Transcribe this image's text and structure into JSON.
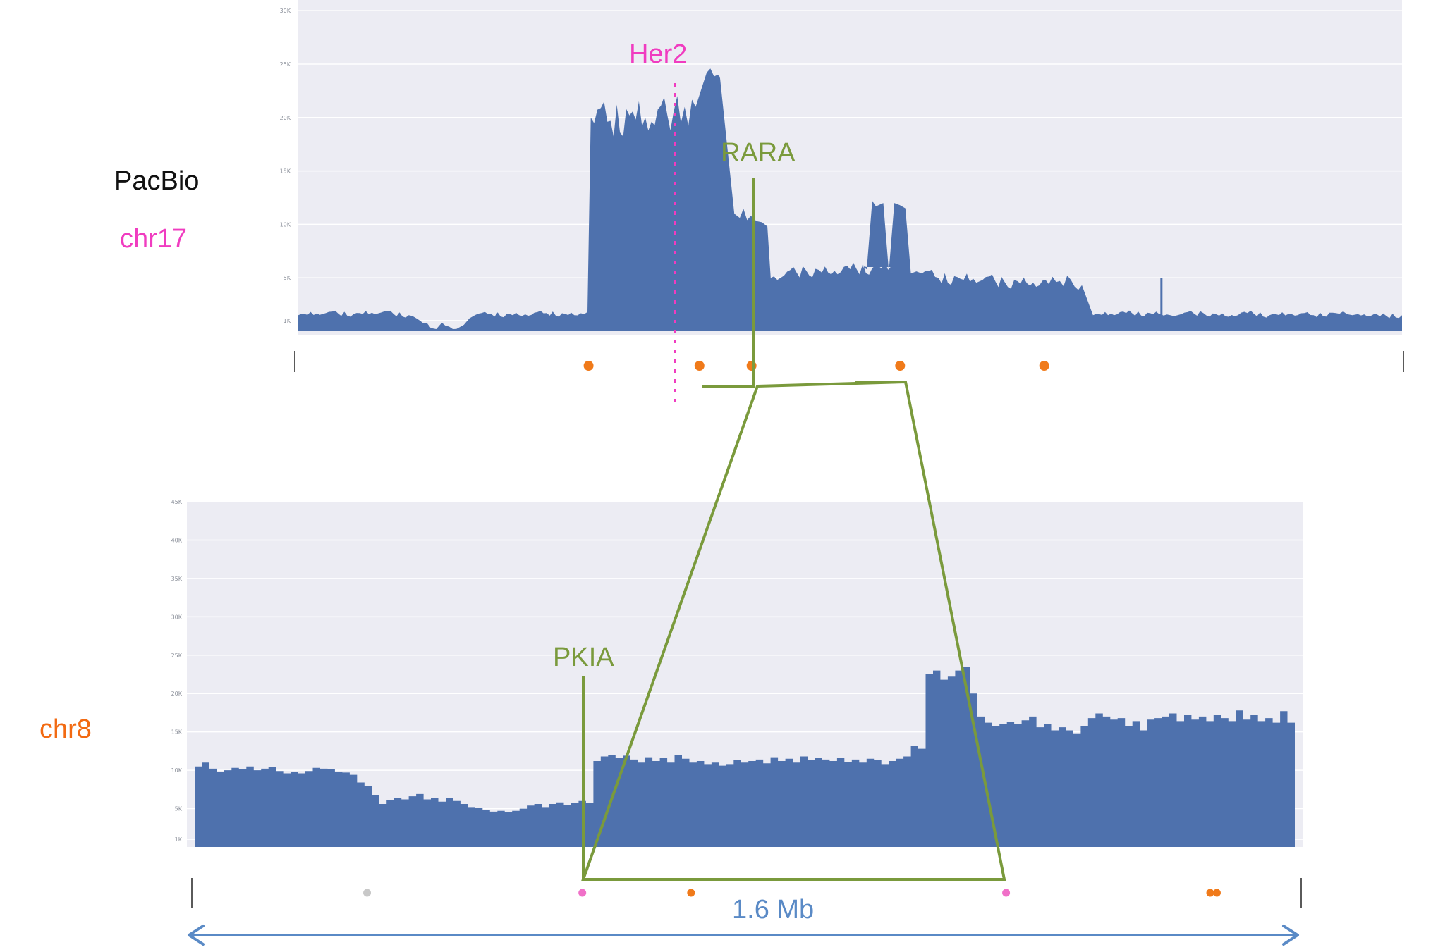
{
  "labels": {
    "pacbio": "PacBio",
    "chr17": "chr17",
    "chr8": "chr8",
    "her2": "Her2",
    "rara": "RARA",
    "pkia": "PKIA",
    "scale": "1.6 Mb"
  },
  "colors": {
    "bar": "#4e71ad",
    "plot_bg": "#ececf3",
    "grid": "#ffffff",
    "gene_green": "#7a9a3c",
    "her2_pink": "#f03cc0",
    "chr8_orange": "#f26a12",
    "orange_dot": "#f07a1a",
    "pink_dot": "#f070c8",
    "grey_dot": "#c8c8c8",
    "scale_blue": "#5a8ac6",
    "black": "#111111"
  },
  "chart_data": [
    {
      "type": "area",
      "panel": "chr17",
      "ylim": [
        0,
        31000
      ],
      "y_ticks": [
        "1K",
        "5K",
        "10K",
        "15K",
        "20K",
        "25K",
        "30K"
      ],
      "y_tick_values": [
        1000,
        5000,
        10000,
        15000,
        20000,
        25000,
        30000
      ],
      "x": [
        0,
        0.025,
        0.05,
        0.075,
        0.1,
        0.11,
        0.12,
        0.125,
        0.13,
        0.14,
        0.15,
        0.155,
        0.16,
        0.175,
        0.2,
        0.225,
        0.25,
        0.262,
        0.265,
        0.28,
        0.3,
        0.32,
        0.34,
        0.35,
        0.36,
        0.37,
        0.38,
        0.382,
        0.395,
        0.4,
        0.41,
        0.415,
        0.42,
        0.425,
        0.428,
        0.44,
        0.46,
        0.48,
        0.5,
        0.52,
        0.54,
        0.515,
        0.51,
        0.515,
        0.52,
        0.53,
        0.535,
        0.54,
        0.545,
        0.55,
        0.555,
        0.56,
        0.565,
        0.58,
        0.6,
        0.62,
        0.64,
        0.66,
        0.68,
        0.69,
        0.7,
        0.71,
        0.72,
        0.75,
        0.78,
        0.781,
        0.79,
        0.8,
        0.82,
        0.84,
        0.86,
        0.88,
        0.9,
        0.92,
        0.94,
        0.95,
        0.955,
        0.96,
        0.98,
        1.0
      ],
      "values": [
        1500,
        1700,
        1600,
        1750,
        1500,
        1000,
        300,
        200,
        800,
        200,
        600,
        1200,
        1500,
        1600,
        1500,
        1700,
        1500,
        1800,
        20000,
        19600,
        20200,
        19600,
        20500,
        21000,
        21000,
        24200,
        24000,
        23800,
        11000,
        10600,
        10800,
        10300,
        10200,
        9800,
        5000,
        5200,
        5700,
        5500,
        5800,
        5900,
        6000,
        6000,
        6100,
        5800,
        12200,
        12000,
        5600,
        12000,
        11800,
        11500,
        5400,
        5600,
        5400,
        5000,
        4900,
        4800,
        4600,
        4500,
        4400,
        4700,
        4800,
        4300,
        1500,
        1700,
        1600,
        1600,
        1500,
        1600,
        1700,
        1400,
        1700,
        1500,
        1600,
        1500,
        1700,
        1600,
        1500,
        1600,
        1400,
        1500
      ],
      "spike": {
        "x": 0.782,
        "value": 5000
      }
    },
    {
      "type": "bar",
      "panel": "chr8",
      "ylim": [
        0,
        45000
      ],
      "y_ticks": [
        "1K",
        "5K",
        "10K",
        "15K",
        "20K",
        "25K",
        "30K",
        "35K",
        "40K",
        "45K"
      ],
      "y_tick_values": [
        1000,
        5000,
        10000,
        15000,
        20000,
        25000,
        30000,
        35000,
        40000,
        45000
      ],
      "values": [
        10500,
        11000,
        10200,
        9800,
        10000,
        10300,
        10100,
        10500,
        10000,
        10200,
        10400,
        9900,
        9600,
        9800,
        9600,
        9900,
        10300,
        10200,
        10100,
        9800,
        9700,
        9400,
        8400,
        7900,
        6800,
        5600,
        6100,
        6400,
        6200,
        6600,
        6900,
        6200,
        6400,
        5900,
        6400,
        6000,
        5600,
        5200,
        5100,
        4800,
        4600,
        4700,
        4500,
        4700,
        5000,
        5400,
        5600,
        5200,
        5600,
        5800,
        5500,
        5700,
        6000,
        5700,
        11200,
        11800,
        12000,
        11600,
        11900,
        11400,
        11000,
        11700,
        11200,
        11600,
        11000,
        12000,
        11500,
        11000,
        11200,
        10800,
        11000,
        10600,
        10800,
        11300,
        11000,
        11200,
        11400,
        10900,
        11700,
        11200,
        11500,
        11000,
        11800,
        11300,
        11600,
        11400,
        11200,
        11600,
        11100,
        11400,
        11000,
        11500,
        11300,
        10800,
        11200,
        11500,
        11800,
        13200,
        12800,
        22500,
        23000,
        21800,
        22200,
        23000,
        23500,
        20000,
        17000,
        16200,
        15800,
        16000,
        16300,
        16000,
        16500,
        17000,
        15600,
        16000,
        15200,
        15600,
        15200,
        14800,
        15800,
        16800,
        17400,
        17000,
        16600,
        16800,
        15800,
        16400,
        15200,
        16600,
        16800,
        17000,
        17400,
        16400,
        17200,
        16600,
        17000,
        16400,
        17200,
        16800,
        16400,
        17800,
        16600,
        17200,
        16400,
        16800,
        16200,
        17700,
        16200
      ]
    }
  ],
  "track_dots": {
    "chr17": [
      {
        "x": 0.265,
        "color": "orange"
      },
      {
        "x": 0.365,
        "color": "orange"
      },
      {
        "x": 0.412,
        "color": "orange"
      },
      {
        "x": 0.546,
        "color": "orange"
      },
      {
        "x": 0.676,
        "color": "orange"
      }
    ],
    "chr8": [
      {
        "x": 0.158,
        "color": "grey"
      },
      {
        "x": 0.352,
        "color": "pink"
      },
      {
        "x": 0.45,
        "color": "orange"
      },
      {
        "x": 0.734,
        "color": "pink"
      },
      {
        "x": 0.918,
        "color": "orange"
      },
      {
        "x": 0.924,
        "color": "orange"
      }
    ]
  }
}
